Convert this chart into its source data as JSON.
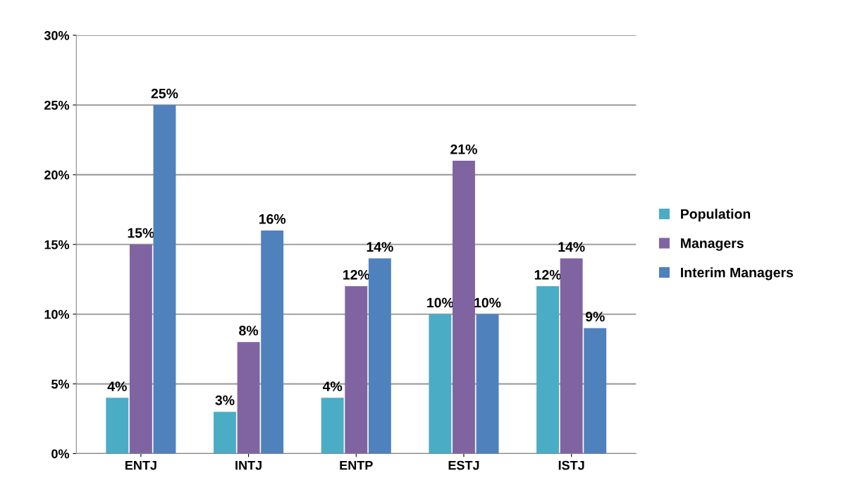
{
  "chart_data": {
    "type": "bar",
    "categories": [
      "ENTJ",
      "INTJ",
      "ENTP",
      "ESTJ",
      "ISTJ"
    ],
    "series": [
      {
        "name": "Population",
        "color": "#4bacc6",
        "values": [
          4,
          3,
          4,
          10,
          12
        ],
        "value_labels": [
          "4%",
          "3%",
          "4%",
          "10%",
          "12%"
        ]
      },
      {
        "name": "Managers",
        "color": "#8064a2",
        "values": [
          15,
          8,
          12,
          21,
          14
        ],
        "value_labels": [
          "15%",
          "8%",
          "12%",
          "21%",
          "14%"
        ]
      },
      {
        "name": "Interim Managers",
        "color": "#4f81bd",
        "values": [
          25,
          16,
          14,
          10,
          9
        ],
        "value_labels": [
          "25%",
          "16%",
          "14%",
          "10%",
          "9%"
        ]
      }
    ],
    "ylim": [
      0,
      30
    ],
    "yticks": [
      {
        "value": 0,
        "label": "0%"
      },
      {
        "value": 5,
        "label": "5%"
      },
      {
        "value": 10,
        "label": "10%"
      },
      {
        "value": 15,
        "label": "15%"
      },
      {
        "value": 20,
        "label": "20%"
      },
      {
        "value": 25,
        "label": "25%"
      },
      {
        "value": 30,
        "label": "30%"
      }
    ],
    "grid": "y",
    "legend": "right"
  }
}
